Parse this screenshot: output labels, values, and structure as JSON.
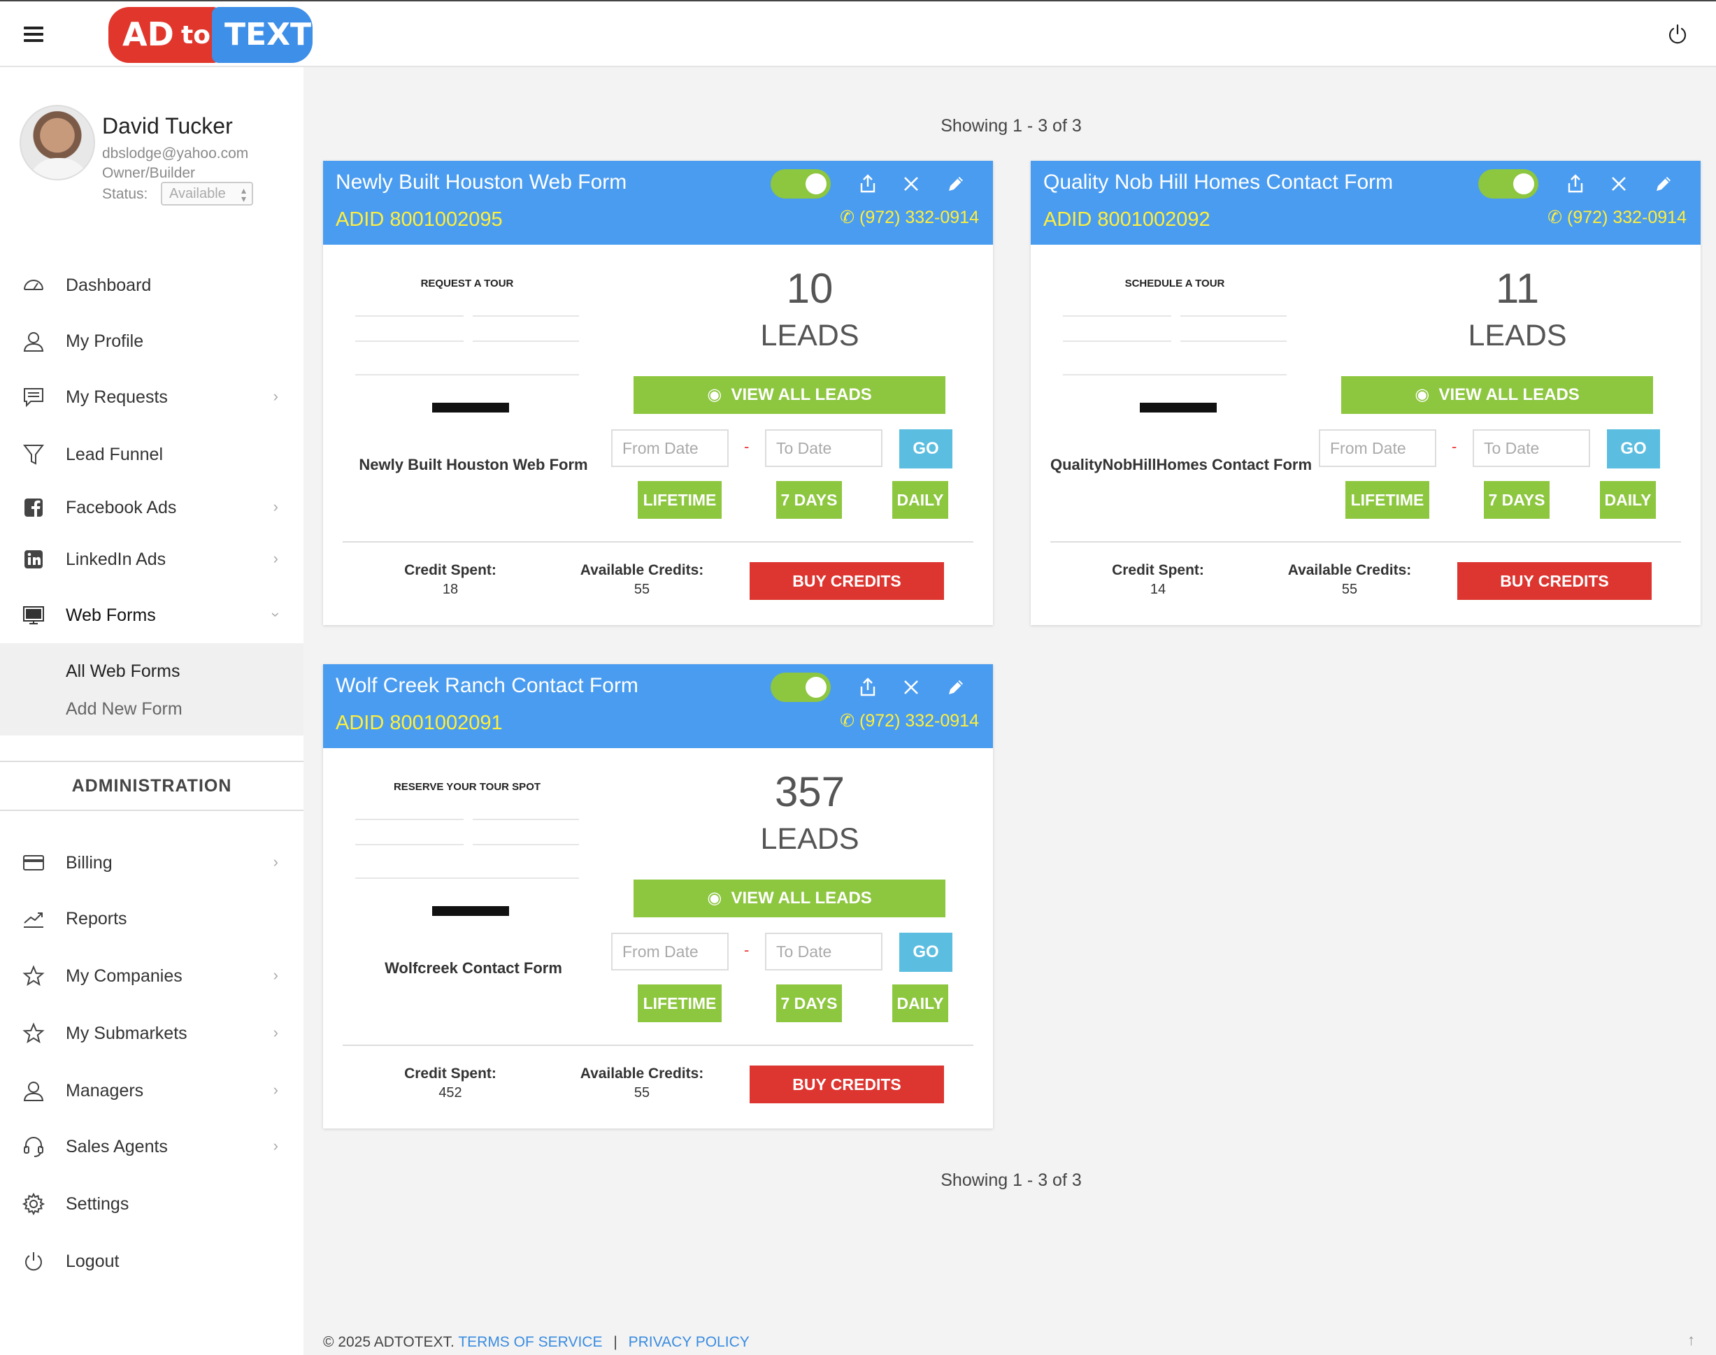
{
  "app": {
    "logo_ad": "AD",
    "logo_to": "to",
    "logo_text": "TEXT"
  },
  "user": {
    "name": "David Tucker",
    "email": "dbslodge@yahoo.com",
    "role": "Owner/Builder",
    "status_label": "Status:",
    "status_value": "Available"
  },
  "sidebar": {
    "items": [
      {
        "label": "Dashboard",
        "icon": "dashboard-icon",
        "chevron": false
      },
      {
        "label": "My Profile",
        "icon": "user-icon",
        "chevron": false
      },
      {
        "label": "My Requests",
        "icon": "chat-icon",
        "chevron": true
      },
      {
        "label": "Lead Funnel",
        "icon": "funnel-icon",
        "chevron": false
      },
      {
        "label": "Facebook Ads",
        "icon": "facebook-icon",
        "chevron": true
      },
      {
        "label": "LinkedIn Ads",
        "icon": "linkedin-icon",
        "chevron": true
      },
      {
        "label": "Web Forms",
        "icon": "monitor-icon",
        "chevron": true
      }
    ],
    "submenu": [
      "All Web Forms",
      "Add New Form"
    ],
    "admin_heading": "ADMINISTRATION",
    "admin_items": [
      {
        "label": "Billing",
        "icon": "card-icon",
        "chevron": true
      },
      {
        "label": "Reports",
        "icon": "trend-icon",
        "chevron": false
      },
      {
        "label": "My Companies",
        "icon": "star-icon",
        "chevron": true
      },
      {
        "label": "My Submarkets",
        "icon": "star-icon",
        "chevron": true
      },
      {
        "label": "Managers",
        "icon": "user-icon",
        "chevron": true
      },
      {
        "label": "Sales Agents",
        "icon": "headset-icon",
        "chevron": true
      },
      {
        "label": "Settings",
        "icon": "gear-icon",
        "chevron": false
      },
      {
        "label": "Logout",
        "icon": "power-icon",
        "chevron": false
      }
    ]
  },
  "main": {
    "showing_top": "Showing 1 - 3 of 3",
    "showing_bottom": "Showing 1 - 3 of 3",
    "cards": [
      {
        "title": "Newly Built Houston Web Form",
        "adid": "ADID 8001002095",
        "phone": "(972) 332-0914",
        "preview_heading": "REQUEST A TOUR",
        "form_name": "Newly Built Houston Web Form",
        "leads_count": "10",
        "leads_label": "LEADS",
        "view_all": "VIEW ALL LEADS",
        "from_placeholder": "From Date",
        "to_placeholder": "To Date",
        "dash": "-",
        "go": "GO",
        "lifetime": "LIFETIME",
        "days7": "7 DAYS",
        "daily": "DAILY",
        "credit_spent_label": "Credit Spent:",
        "credit_spent": "18",
        "available_label": "Available Credits:",
        "available": "55",
        "buy": "BUY CREDITS"
      },
      {
        "title": "Quality Nob Hill Homes Contact Form",
        "adid": "ADID 8001002092",
        "phone": "(972) 332-0914",
        "preview_heading": "SCHEDULE A TOUR",
        "form_name": "QualityNobHillHomes Contact Form",
        "leads_count": "11",
        "leads_label": "LEADS",
        "view_all": "VIEW ALL LEADS",
        "from_placeholder": "From Date",
        "to_placeholder": "To Date",
        "dash": "-",
        "go": "GO",
        "lifetime": "LIFETIME",
        "days7": "7 DAYS",
        "daily": "DAILY",
        "credit_spent_label": "Credit Spent:",
        "credit_spent": "14",
        "available_label": "Available Credits:",
        "available": "55",
        "buy": "BUY CREDITS"
      },
      {
        "title": "Wolf Creek Ranch Contact Form",
        "adid": "ADID 8001002091",
        "phone": "(972) 332-0914",
        "preview_heading": "RESERVE YOUR TOUR SPOT",
        "form_name": "Wolfcreek Contact Form",
        "leads_count": "357",
        "leads_label": "LEADS",
        "view_all": "VIEW ALL LEADS",
        "from_placeholder": "From Date",
        "to_placeholder": "To Date",
        "dash": "-",
        "go": "GO",
        "lifetime": "LIFETIME",
        "days7": "7 DAYS",
        "daily": "DAILY",
        "credit_spent_label": "Credit Spent:",
        "credit_spent": "452",
        "available_label": "Available Credits:",
        "available": "55",
        "buy": "BUY CREDITS"
      }
    ]
  },
  "footer": {
    "copyright": "© 2025 ADTOTEXT.",
    "terms": "TERMS OF SERVICE",
    "divider": "|",
    "privacy": "PRIVACY POLICY"
  },
  "colors": {
    "header_blue": "#4a9cf0",
    "accent_yellow": "#ffef3c",
    "green": "#8dc63f",
    "red": "#dd3530",
    "go_blue": "#5bbde0"
  }
}
